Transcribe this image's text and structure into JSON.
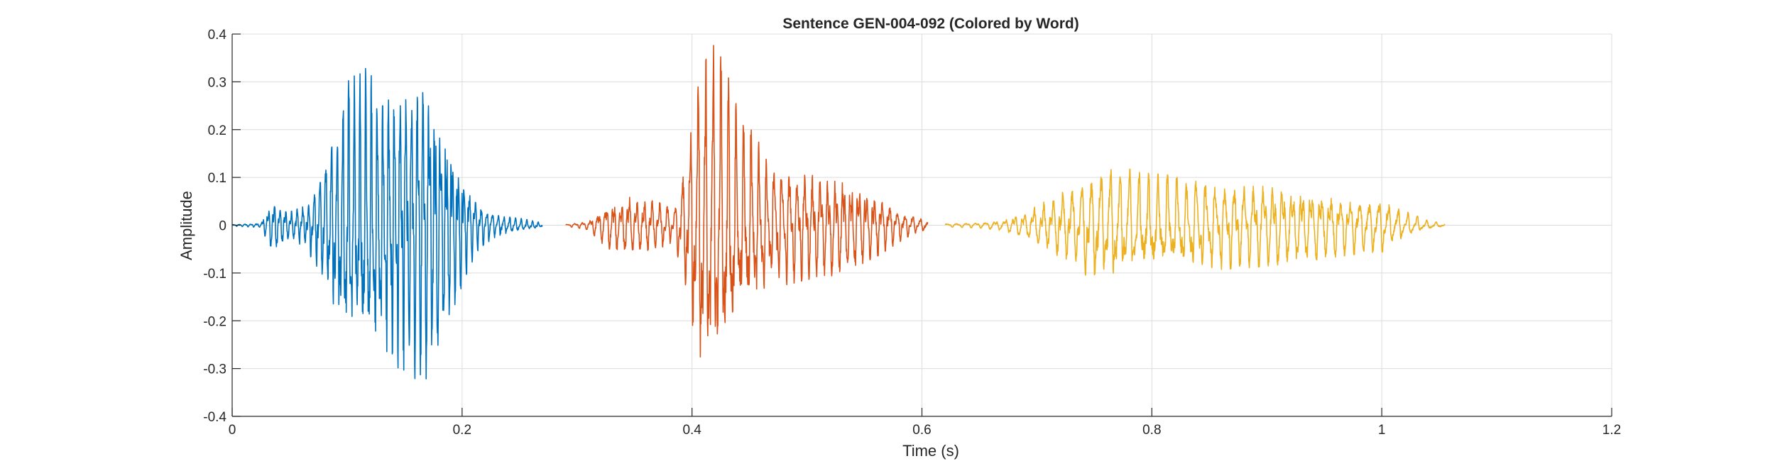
{
  "chart_data": {
    "type": "line",
    "title": "Sentence GEN-004-092 (Colored by Word)",
    "xlabel": "Time (s)",
    "ylabel": "Amplitude",
    "xlim": [
      0,
      1.2
    ],
    "ylim": [
      -0.4,
      0.4
    ],
    "xticks": [
      0,
      0.2,
      0.4,
      0.6,
      0.8,
      1,
      1.2
    ],
    "xtick_labels": [
      "0",
      "0.2",
      "0.4",
      "0.6",
      "0.8",
      "1",
      "1.2"
    ],
    "yticks": [
      -0.4,
      -0.3,
      -0.2,
      -0.1,
      0,
      0.1,
      0.2,
      0.3,
      0.4
    ],
    "ytick_labels": [
      "-0.4",
      "-0.3",
      "-0.2",
      "-0.1",
      "0",
      "0.1",
      "0.2",
      "0.3",
      "0.4"
    ],
    "grid": true,
    "legend": "none",
    "series": [
      {
        "color": "#0072BD",
        "t_start": 0.0,
        "t_end": 0.27,
        "pitch_hz": 200,
        "envelope": [
          [
            0.0,
            0.002
          ],
          [
            0.025,
            0.005
          ],
          [
            0.035,
            0.06
          ],
          [
            0.05,
            0.03
          ],
          [
            0.065,
            0.05
          ],
          [
            0.085,
            0.17
          ],
          [
            0.1,
            0.3
          ],
          [
            0.115,
            0.33
          ],
          [
            0.13,
            0.3
          ],
          [
            0.15,
            0.32
          ],
          [
            0.17,
            0.36
          ],
          [
            0.19,
            0.2
          ],
          [
            0.205,
            0.1
          ],
          [
            0.215,
            0.05
          ],
          [
            0.23,
            0.025
          ],
          [
            0.27,
            0.005
          ]
        ]
      },
      {
        "color": "#D95319",
        "t_start": 0.29,
        "t_end": 0.605,
        "pitch_hz": 150,
        "envelope": [
          [
            0.29,
            0.002
          ],
          [
            0.31,
            0.01
          ],
          [
            0.325,
            0.05
          ],
          [
            0.345,
            0.065
          ],
          [
            0.365,
            0.06
          ],
          [
            0.385,
            0.04
          ],
          [
            0.395,
            0.15
          ],
          [
            0.405,
            0.34
          ],
          [
            0.415,
            0.35
          ],
          [
            0.42,
            0.385
          ],
          [
            0.43,
            0.32
          ],
          [
            0.445,
            0.22
          ],
          [
            0.47,
            0.14
          ],
          [
            0.5,
            0.12
          ],
          [
            0.53,
            0.11
          ],
          [
            0.56,
            0.07
          ],
          [
            0.585,
            0.03
          ],
          [
            0.605,
            0.01
          ]
        ]
      },
      {
        "color": "#EDB120",
        "t_start": 0.62,
        "t_end": 1.055,
        "pitch_hz": 120,
        "envelope": [
          [
            0.62,
            0.004
          ],
          [
            0.65,
            0.006
          ],
          [
            0.67,
            0.012
          ],
          [
            0.69,
            0.03
          ],
          [
            0.72,
            0.07
          ],
          [
            0.745,
            0.115
          ],
          [
            0.765,
            0.13
          ],
          [
            0.79,
            0.11
          ],
          [
            0.84,
            0.1
          ],
          [
            0.88,
            0.095
          ],
          [
            0.92,
            0.085
          ],
          [
            0.96,
            0.07
          ],
          [
            0.99,
            0.06
          ],
          [
            1.0,
            0.06
          ],
          [
            1.015,
            0.035
          ],
          [
            1.04,
            0.01
          ],
          [
            1.055,
            0.003
          ]
        ]
      }
    ]
  }
}
